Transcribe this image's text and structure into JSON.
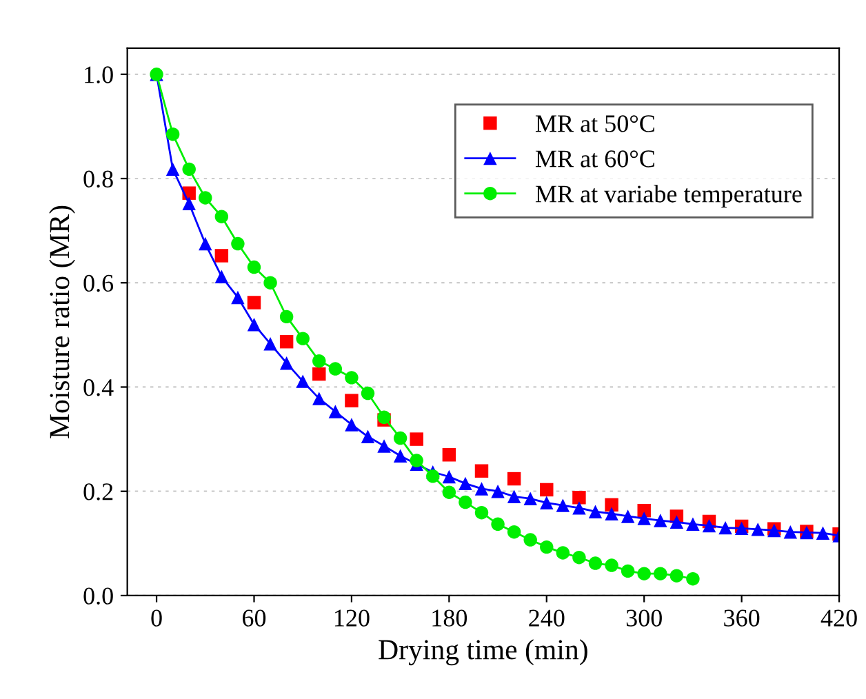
{
  "chart_data": {
    "type": "line",
    "xlabel": "Drying time (min)",
    "ylabel": "Moisture ratio (MR)",
    "xlim": [
      -18,
      420
    ],
    "xticks": [
      0,
      60,
      120,
      180,
      240,
      300,
      360,
      420
    ],
    "ylim": [
      0,
      1.05
    ],
    "yticks": [
      {
        "value": 0,
        "label": "0.0"
      },
      0.2,
      0.4,
      0.6,
      0.8,
      {
        "value": 1,
        "label": "1.0"
      }
    ],
    "grid": "y",
    "legend": "top right",
    "series": [
      {
        "name": "MR at 50°C",
        "color": "#ff0000",
        "type": "scatter",
        "marker": "square",
        "x": [
          20,
          40,
          60,
          80,
          100,
          120,
          140,
          160,
          180,
          200,
          220,
          240,
          260,
          280,
          300,
          320,
          340,
          360,
          380,
          400,
          420
        ],
        "values": [
          0.772,
          0.652,
          0.562,
          0.487,
          0.425,
          0.374,
          0.337,
          0.3,
          0.27,
          0.239,
          0.224,
          0.203,
          0.188,
          0.174,
          0.163,
          0.152,
          0.142,
          0.133,
          0.128,
          0.123,
          0.118
        ]
      },
      {
        "name": "MR at 60°C",
        "color": "#0000ff",
        "marker": "triangle",
        "line_style": "solid",
        "x": [
          0,
          10,
          20,
          30,
          40,
          50,
          60,
          70,
          80,
          90,
          100,
          110,
          120,
          130,
          140,
          150,
          160,
          170,
          180,
          190,
          200,
          210,
          220,
          230,
          240,
          250,
          260,
          270,
          280,
          290,
          300,
          310,
          320,
          330,
          340,
          350,
          360,
          370,
          380,
          390,
          400,
          410,
          420
        ],
        "values": [
          1.0,
          0.818,
          0.752,
          0.675,
          0.612,
          0.572,
          0.52,
          0.483,
          0.446,
          0.411,
          0.378,
          0.353,
          0.328,
          0.305,
          0.287,
          0.268,
          0.252,
          0.237,
          0.228,
          0.215,
          0.205,
          0.2,
          0.19,
          0.186,
          0.178,
          0.173,
          0.168,
          0.161,
          0.157,
          0.152,
          0.148,
          0.144,
          0.141,
          0.137,
          0.134,
          0.13,
          0.129,
          0.127,
          0.125,
          0.122,
          0.121,
          0.12,
          0.115
        ]
      },
      {
        "name": "MR at variabe temperature",
        "color": "#00ee00",
        "marker": "circle",
        "line_style": "solid",
        "x": [
          0,
          10,
          20,
          30,
          40,
          50,
          60,
          70,
          80,
          90,
          100,
          110,
          120,
          130,
          140,
          150,
          160,
          170,
          180,
          190,
          200,
          210,
          220,
          230,
          240,
          250,
          260,
          270,
          280,
          290,
          300,
          310,
          320,
          330
        ],
        "values": [
          1.0,
          0.885,
          0.818,
          0.763,
          0.727,
          0.675,
          0.63,
          0.6,
          0.535,
          0.493,
          0.45,
          0.435,
          0.418,
          0.388,
          0.342,
          0.302,
          0.259,
          0.229,
          0.198,
          0.179,
          0.159,
          0.137,
          0.122,
          0.107,
          0.093,
          0.082,
          0.073,
          0.062,
          0.058,
          0.047,
          0.042,
          0.042,
          0.038,
          0.032
        ]
      }
    ]
  }
}
